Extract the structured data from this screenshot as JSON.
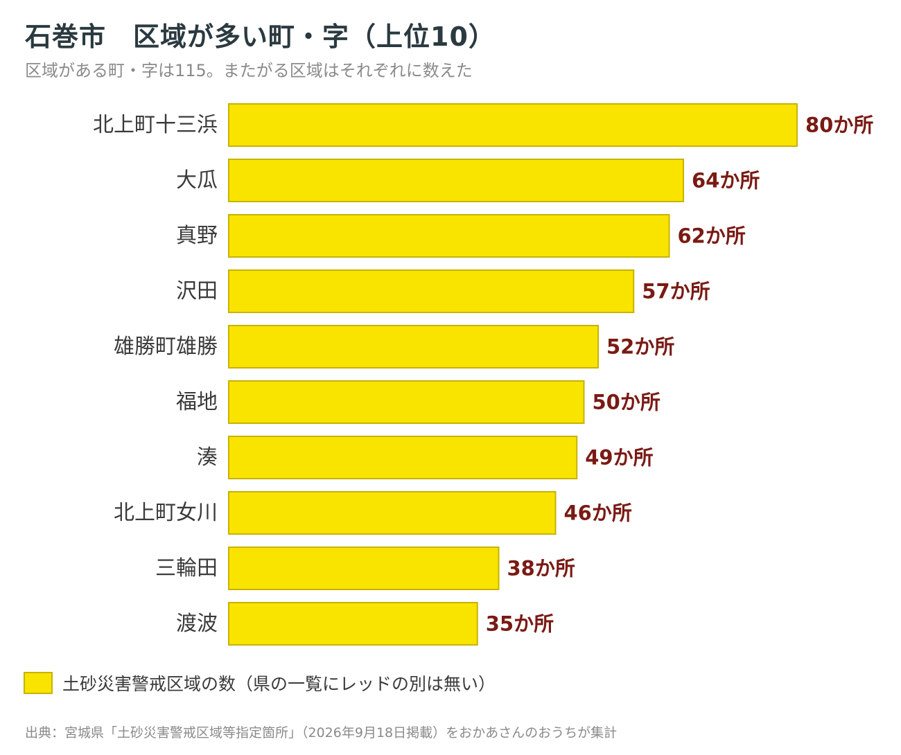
{
  "title": "石巻市　区域が多い町・字（上位10）",
  "subtitle": "区域がある町・字は115。またがる区域はそれぞれに数えた",
  "colors": {
    "bar": "#f9e400",
    "bar_border": "#c8b200",
    "value_text": "#7a1a14"
  },
  "chart_data": {
    "type": "bar",
    "orientation": "horizontal",
    "categories": [
      "北上町十三浜",
      "大瓜",
      "真野",
      "沢田",
      "雄勝町雄勝",
      "福地",
      "湊",
      "北上町女川",
      "三輪田",
      "渡波"
    ],
    "series": [
      {
        "name": "土砂災害警戒区域の数（県の一覧にレッドの別は無い）",
        "values": [
          80,
          64,
          62,
          57,
          52,
          50,
          49,
          46,
          38,
          35
        ]
      }
    ],
    "value_labels": [
      "80か所",
      "64か所",
      "62か所",
      "57か所",
      "52か所",
      "50か所",
      "49か所",
      "46か所",
      "38か所",
      "35か所"
    ],
    "xlim": [
      0,
      80
    ],
    "grid": false,
    "legend_position": "bottom-left"
  },
  "legend": {
    "label": "土砂災害警戒区域の数（県の一覧にレッドの別は無い）"
  },
  "source": "出典：宮城県「土砂災害警戒区域等指定箇所」（2026年9月18日掲載）をおかあさんのおうちが集計"
}
